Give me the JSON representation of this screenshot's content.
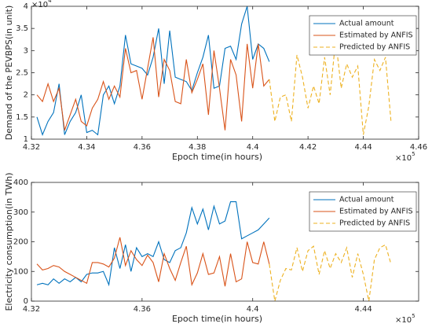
{
  "chart_data": [
    {
      "type": "line",
      "ylabel": "Demand of the PEVBPS(in unit)",
      "xlabel": "Epoch time(in hours)",
      "y_multiplier": "×10",
      "y_exponent": "4",
      "x_multiplier": "×10",
      "x_exponent": "5",
      "xlim": [
        4.32,
        4.46
      ],
      "xticks": [
        4.32,
        4.34,
        4.36,
        4.38,
        4.4,
        4.42,
        4.44,
        4.46
      ],
      "ylim": [
        1,
        4
      ],
      "yticks": [
        1,
        1.5,
        2,
        2.5,
        3,
        3.5,
        4
      ],
      "series": [
        {
          "name": "Actual amount",
          "color": "#0072BD",
          "dash": false,
          "x": [
            4.322,
            4.324,
            4.326,
            4.328,
            4.33,
            4.332,
            4.334,
            4.336,
            4.338,
            4.34,
            4.342,
            4.344,
            4.346,
            4.348,
            4.35,
            4.352,
            4.354,
            4.356,
            4.358,
            4.36,
            4.362,
            4.364,
            4.366,
            4.368,
            4.37,
            4.372,
            4.374,
            4.376,
            4.378,
            4.38,
            4.382,
            4.384,
            4.386,
            4.388,
            4.39,
            4.392,
            4.394,
            4.396,
            4.398,
            4.4,
            4.402,
            4.404,
            4.406
          ],
          "values": [
            1.5,
            1.1,
            1.4,
            1.6,
            2.25,
            1.1,
            1.4,
            1.6,
            2.0,
            1.15,
            1.2,
            1.1,
            2.0,
            2.2,
            1.8,
            2.2,
            3.35,
            2.7,
            2.65,
            2.6,
            2.45,
            2.85,
            3.5,
            2.25,
            3.45,
            2.4,
            2.35,
            2.3,
            2.1,
            2.5,
            2.85,
            3.35,
            2.15,
            2.2,
            3.05,
            3.1,
            2.8,
            3.6,
            4.0,
            2.8,
            3.15,
            3.05,
            2.75
          ]
        },
        {
          "name": "Estimated by ANFIS",
          "color": "#D95319",
          "dash": false,
          "x": [
            4.322,
            4.324,
            4.326,
            4.328,
            4.33,
            4.332,
            4.334,
            4.336,
            4.338,
            4.34,
            4.342,
            4.344,
            4.346,
            4.348,
            4.35,
            4.352,
            4.354,
            4.356,
            4.358,
            4.36,
            4.362,
            4.364,
            4.366,
            4.368,
            4.37,
            4.372,
            4.374,
            4.376,
            4.378,
            4.38,
            4.382,
            4.384,
            4.386,
            4.388,
            4.39,
            4.392,
            4.394,
            4.396,
            4.398,
            4.4,
            4.402,
            4.404,
            4.406
          ],
          "values": [
            2.0,
            1.85,
            2.25,
            1.85,
            2.15,
            1.2,
            1.55,
            1.9,
            1.4,
            1.3,
            1.7,
            1.9,
            2.3,
            1.9,
            2.2,
            1.95,
            3.05,
            2.5,
            2.55,
            1.9,
            2.6,
            3.3,
            1.95,
            2.8,
            2.55,
            1.85,
            1.8,
            2.8,
            2.05,
            2.35,
            2.7,
            1.55,
            3.0,
            2.15,
            1.2,
            2.8,
            2.45,
            1.4,
            3.15,
            2.15,
            3.15,
            2.2,
            2.35
          ]
        },
        {
          "name": "Predicted by ANFIS",
          "color": "#EDB120",
          "dash": true,
          "x": [
            4.406,
            4.408,
            4.41,
            4.412,
            4.414,
            4.416,
            4.418,
            4.42,
            4.422,
            4.424,
            4.426,
            4.428,
            4.43,
            4.432,
            4.434,
            4.436,
            4.438,
            4.44,
            4.442,
            4.444,
            4.446,
            4.448,
            4.45
          ],
          "values": [
            2.35,
            1.4,
            1.95,
            2.0,
            1.4,
            2.9,
            2.4,
            1.7,
            2.2,
            1.8,
            2.85,
            2.0,
            3.25,
            2.15,
            2.7,
            2.4,
            2.65,
            1.1,
            1.75,
            2.8,
            2.55,
            2.85,
            1.4
          ]
        }
      ]
    },
    {
      "type": "line",
      "ylabel": "Electricity consumption(in TWh)",
      "xlabel": "Epoch time(in hours)",
      "x_multiplier": "×10",
      "x_exponent": "5",
      "xlim": [
        4.32,
        4.46
      ],
      "xticks": [
        4.32,
        4.36,
        4.4,
        4.44
      ],
      "ylim": [
        0,
        400
      ],
      "yticks": [
        0,
        100,
        200,
        300,
        400
      ],
      "series": [
        {
          "name": "Actual amount",
          "color": "#0072BD",
          "dash": false,
          "x": [
            4.322,
            4.324,
            4.326,
            4.328,
            4.33,
            4.332,
            4.334,
            4.336,
            4.338,
            4.34,
            4.342,
            4.344,
            4.346,
            4.348,
            4.35,
            4.352,
            4.354,
            4.356,
            4.358,
            4.36,
            4.362,
            4.364,
            4.366,
            4.368,
            4.37,
            4.372,
            4.374,
            4.376,
            4.378,
            4.38,
            4.382,
            4.384,
            4.386,
            4.388,
            4.39,
            4.392,
            4.394,
            4.396,
            4.398,
            4.4,
            4.402,
            4.404,
            4.406
          ],
          "values": [
            55,
            60,
            55,
            75,
            60,
            75,
            65,
            80,
            65,
            90,
            95,
            95,
            100,
            55,
            180,
            110,
            190,
            100,
            180,
            150,
            160,
            150,
            200,
            140,
            130,
            170,
            180,
            230,
            315,
            260,
            310,
            240,
            320,
            260,
            270,
            335,
            335,
            210,
            220,
            230,
            240,
            260,
            280
          ]
        },
        {
          "name": "Estimated by ANFIS",
          "color": "#D95319",
          "dash": false,
          "x": [
            4.322,
            4.324,
            4.326,
            4.328,
            4.33,
            4.332,
            4.334,
            4.336,
            4.338,
            4.34,
            4.342,
            4.344,
            4.346,
            4.348,
            4.35,
            4.352,
            4.354,
            4.356,
            4.358,
            4.36,
            4.362,
            4.364,
            4.366,
            4.368,
            4.37,
            4.372,
            4.374,
            4.376,
            4.378,
            4.38,
            4.382,
            4.384,
            4.386,
            4.388,
            4.39,
            4.392,
            4.394,
            4.396,
            4.398,
            4.4,
            4.402,
            4.404,
            4.406
          ],
          "values": [
            125,
            105,
            110,
            120,
            115,
            100,
            90,
            80,
            70,
            60,
            130,
            130,
            125,
            115,
            145,
            215,
            120,
            170,
            140,
            120,
            155,
            130,
            65,
            160,
            110,
            70,
            130,
            185,
            55,
            95,
            160,
            90,
            95,
            150,
            50,
            160,
            65,
            75,
            200,
            130,
            125,
            200,
            125
          ]
        },
        {
          "name": "Predicted by ANFIS",
          "color": "#EDB120",
          "dash": true,
          "x": [
            4.406,
            4.408,
            4.41,
            4.412,
            4.414,
            4.416,
            4.418,
            4.42,
            4.422,
            4.424,
            4.426,
            4.428,
            4.43,
            4.432,
            4.434,
            4.436,
            4.438,
            4.44,
            4.442,
            4.444,
            4.446,
            4.448,
            4.45
          ],
          "values": [
            125,
            0,
            70,
            110,
            105,
            180,
            100,
            170,
            185,
            90,
            170,
            110,
            160,
            130,
            180,
            80,
            160,
            90,
            0,
            140,
            180,
            190,
            125
          ]
        }
      ]
    }
  ]
}
